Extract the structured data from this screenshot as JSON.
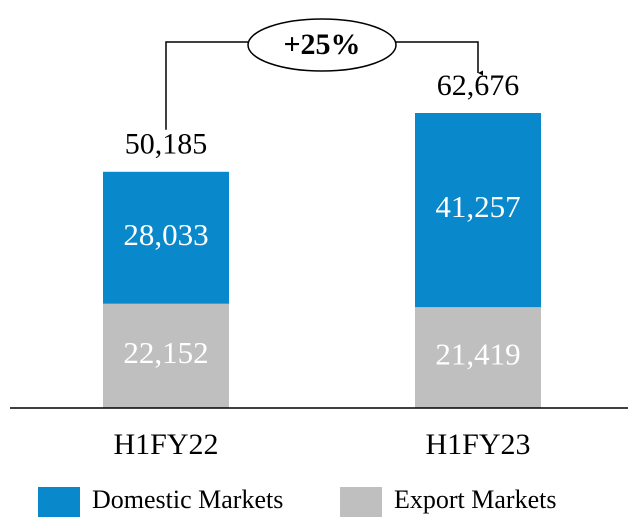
{
  "chart_data": {
    "type": "stacked_bar",
    "categories": [
      "H1FY22",
      "H1FY23"
    ],
    "series": [
      {
        "name": "Domestic Markets",
        "color": "#0a88cc",
        "values": [
          28033,
          41257
        ],
        "value_labels": [
          "28,033",
          "41,257"
        ]
      },
      {
        "name": "Export Markets",
        "color": "#bfbfbf",
        "values": [
          22152,
          21419
        ],
        "value_labels": [
          "22,152",
          "21,419"
        ]
      }
    ],
    "totals": [
      50185,
      62676
    ],
    "totals_labels": [
      "50,185",
      "62,676"
    ],
    "annotation": "+25%",
    "legend": "bottom"
  }
}
